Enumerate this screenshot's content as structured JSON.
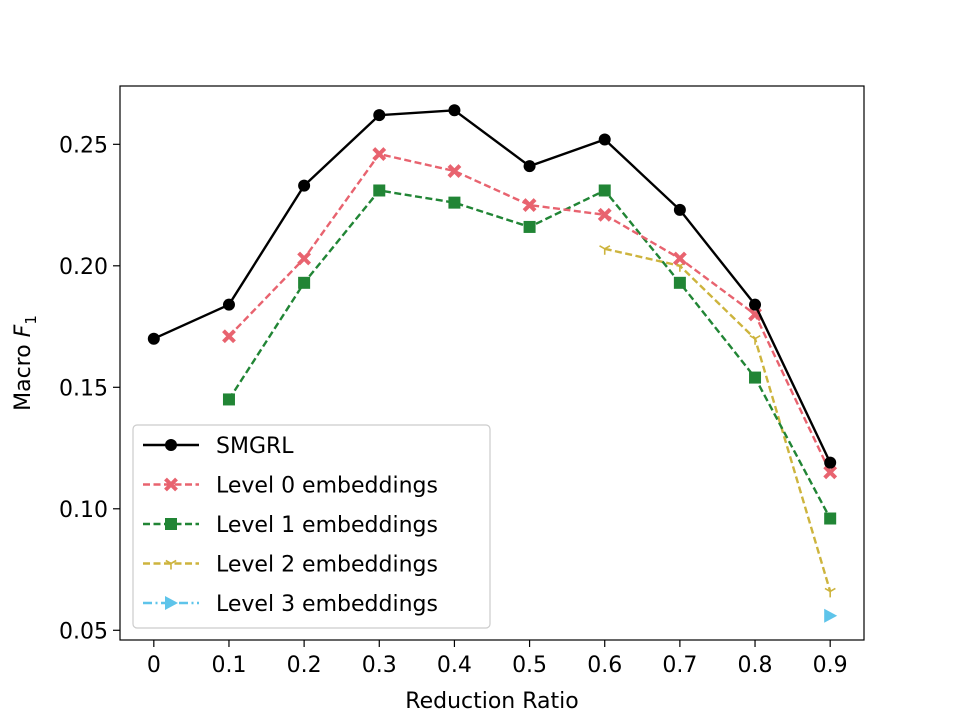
{
  "chart_data": {
    "type": "line",
    "xlabel": "Reduction Ratio",
    "ylabel_prefix": "Macro ",
    "ylabel_var": "F",
    "ylabel_sub": "1",
    "xlim": [
      -0.045,
      0.945
    ],
    "ylim": [
      0.046,
      0.274
    ],
    "x_ticks": [
      0,
      0.1,
      0.2,
      0.3,
      0.4,
      0.5,
      0.6,
      0.7,
      0.8,
      0.9
    ],
    "x_tick_labels": [
      "0",
      "0.1",
      "0.2",
      "0.3",
      "0.4",
      "0.5",
      "0.6",
      "0.7",
      "0.8",
      "0.9"
    ],
    "y_ticks": [
      0.05,
      0.1,
      0.15,
      0.2,
      0.25
    ],
    "y_tick_labels": [
      "0.05",
      "0.10",
      "0.15",
      "0.20",
      "0.25"
    ],
    "legend_position": "lower-left",
    "series": [
      {
        "name": "SMGRL",
        "color": "#000000",
        "dash": "solid",
        "marker": "circle",
        "x": [
          0,
          0.1,
          0.2,
          0.3,
          0.4,
          0.5,
          0.6,
          0.7,
          0.8,
          0.9
        ],
        "y": [
          0.17,
          0.184,
          0.233,
          0.262,
          0.264,
          0.241,
          0.252,
          0.223,
          0.184,
          0.119
        ]
      },
      {
        "name": "Level 0 embeddings",
        "color": "#e8636f",
        "dash": "dashed",
        "marker": "x",
        "x": [
          0.1,
          0.2,
          0.3,
          0.4,
          0.5,
          0.6,
          0.7,
          0.8,
          0.9
        ],
        "y": [
          0.171,
          0.203,
          0.246,
          0.239,
          0.225,
          0.221,
          0.203,
          0.18,
          0.115
        ]
      },
      {
        "name": "Level 1 embeddings",
        "color": "#218535",
        "dash": "dashed",
        "marker": "square",
        "x": [
          0.1,
          0.2,
          0.3,
          0.4,
          0.5,
          0.6,
          0.7,
          0.8,
          0.9
        ],
        "y": [
          0.145,
          0.193,
          0.231,
          0.226,
          0.216,
          0.231,
          0.193,
          0.154,
          0.096
        ]
      },
      {
        "name": "Level 2 embeddings",
        "color": "#cdb43d",
        "dash": "dashed",
        "marker": "tri_down",
        "x": [
          0.6,
          0.7,
          0.8,
          0.9
        ],
        "y": [
          0.207,
          0.2,
          0.17,
          0.066
        ]
      },
      {
        "name": "Level 3 embeddings",
        "color": "#5ec4ea",
        "dash": "dashdot",
        "marker": "triangle-right",
        "x": [
          0.9
        ],
        "y": [
          0.056
        ]
      }
    ]
  }
}
